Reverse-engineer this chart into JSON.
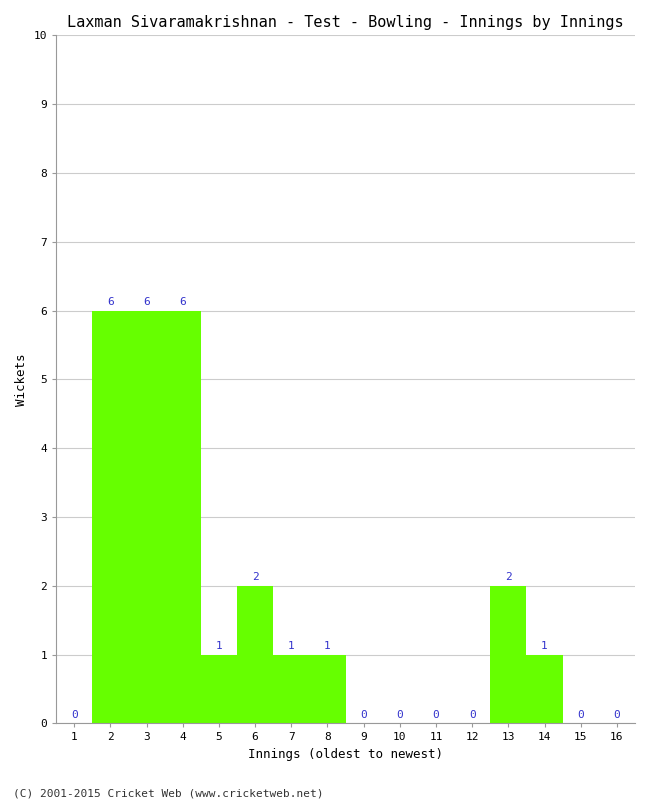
{
  "title": "Laxman Sivaramakrishnan - Test - Bowling - Innings by Innings",
  "xlabel": "Innings (oldest to newest)",
  "ylabel": "Wickets",
  "innings": [
    1,
    2,
    3,
    4,
    5,
    6,
    7,
    8,
    9,
    10,
    11,
    12,
    13,
    14,
    15,
    16
  ],
  "wickets": [
    0,
    6,
    6,
    6,
    1,
    2,
    1,
    1,
    0,
    0,
    0,
    0,
    2,
    1,
    0,
    0
  ],
  "bar_color": "#66ff00",
  "bar_edge_color": "#66ff00",
  "label_color": "#3333cc",
  "ylim": [
    0,
    10
  ],
  "yticks": [
    0,
    1,
    2,
    3,
    4,
    5,
    6,
    7,
    8,
    9,
    10
  ],
  "bg_color": "#ffffff",
  "grid_color": "#cccccc",
  "footer": "(C) 2001-2015 Cricket Web (www.cricketweb.net)",
  "title_fontsize": 11,
  "axis_label_fontsize": 9,
  "tick_fontsize": 8,
  "bar_label_fontsize": 8,
  "footer_fontsize": 8
}
